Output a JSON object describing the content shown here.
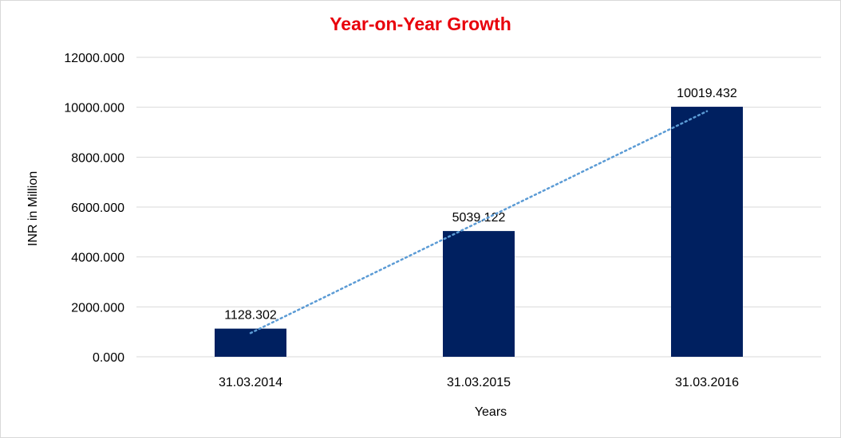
{
  "chart_data": {
    "type": "bar",
    "title": "Year-on-Year Growth",
    "xlabel": "Years",
    "ylabel": "INR in Million",
    "categories": [
      "31.03.2014",
      "31.03.2015",
      "31.03.2016"
    ],
    "values": [
      1128.302,
      5039.122,
      10019.432
    ],
    "data_labels": [
      "1128.302",
      "5039.122",
      "10019.432"
    ],
    "ylim": [
      0,
      12000
    ],
    "yticks": [
      "0.000",
      "2000.000",
      "4000.000",
      "6000.000",
      "8000.000",
      "10000.000",
      "12000.000"
    ],
    "trendline": {
      "type": "linear",
      "style": "dotted"
    },
    "grid": true,
    "legend": "none"
  },
  "colors": {
    "title": "#e8000b",
    "bar": "#002060",
    "trendline": "#5b9bd5",
    "grid": "#d9d9d9",
    "text": "#000000"
  }
}
